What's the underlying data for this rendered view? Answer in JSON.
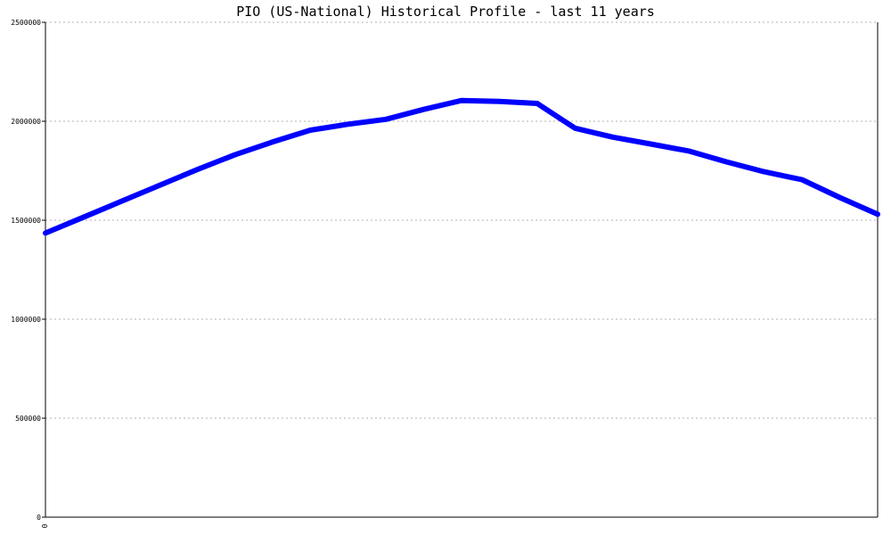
{
  "chart_data": {
    "type": "line",
    "title": "PIO (US-National) Historical Profile - last 11 years",
    "xlabel": "",
    "ylabel": "",
    "ylim": [
      0,
      2500000
    ],
    "yticks": [
      0,
      500000,
      1000000,
      1500000,
      2000000,
      2500000
    ],
    "ytick_labels": [
      "0",
      "500000",
      "1000000",
      "1500000",
      "2000000",
      "2500000"
    ],
    "xtick_labels": [
      "0"
    ],
    "grid": true,
    "series": [
      {
        "color": "#0000ff",
        "x": [
          0,
          1,
          2,
          3,
          4,
          5,
          6,
          7,
          8,
          9,
          10,
          11,
          12,
          13,
          14,
          15,
          16,
          17,
          18,
          19,
          20,
          21,
          22
        ],
        "values": [
          1435000,
          1515000,
          1595000,
          1675000,
          1755000,
          1830000,
          1895000,
          1955000,
          1985000,
          2010000,
          2060000,
          2105000,
          2100000,
          2090000,
          1965000,
          1920000,
          1885000,
          1850000,
          1795000,
          1745000,
          1705000,
          1615000,
          1530000
        ]
      }
    ]
  }
}
